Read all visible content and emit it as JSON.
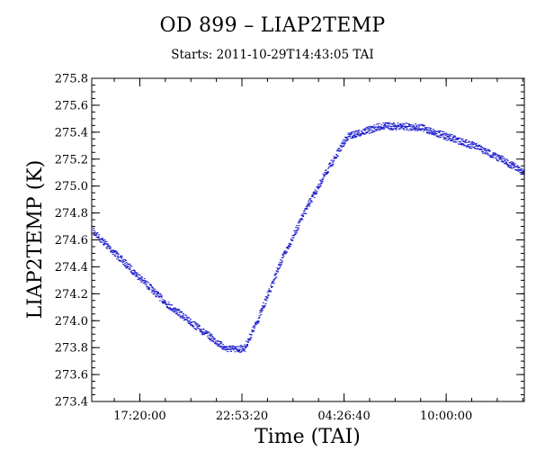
{
  "chart_data": {
    "type": "scatter",
    "title": "OD 899 – LIAP2TEMP",
    "subtitle": "Starts: 2011-10-29T14:43:05 TAI",
    "xlabel": "Time (TAI)",
    "ylabel": "LIAP2TEMP (K)",
    "ylim": [
      273.4,
      275.8
    ],
    "xlim": [
      "2011-10-29T14:43:05",
      "2011-10-30T14:15:00"
    ],
    "y_ticks": [
      "273.4",
      "273.6",
      "273.8",
      "274.0",
      "274.2",
      "274.4",
      "274.6",
      "274.8",
      "275.0",
      "275.2",
      "275.4",
      "275.6",
      "275.8"
    ],
    "x_ticks": [
      {
        "label": "17:20:00",
        "time": "2011-10-29T17:20:00"
      },
      {
        "label": "22:53:20",
        "time": "2011-10-29T22:53:20"
      },
      {
        "label": "04:26:40",
        "time": "2011-10-30T04:26:40"
      },
      {
        "label": "10:00:00",
        "time": "2011-10-30T10:00:00"
      }
    ],
    "grid": false,
    "marker_color": "#2222cc",
    "series": [
      {
        "x": [
          "2011-10-29T14:43:05",
          "2011-10-29T16:20:00",
          "2011-10-29T18:45:00",
          "2011-10-29T20:45:00",
          "2011-10-29T21:55:00",
          "2011-10-29T22:30:00",
          "2011-10-29T23:00:00",
          "2011-10-29T23:45:00",
          "2011-10-30T01:00:00",
          "2011-10-30T02:20:00",
          "2011-10-30T03:25:00",
          "2011-10-30T04:35:00",
          "2011-10-30T06:30:00",
          "2011-10-30T08:30:00",
          "2011-10-30T10:00:00",
          "2011-10-30T11:30:00",
          "2011-10-30T13:00:00",
          "2011-10-30T14:15:00"
        ],
        "values": [
          274.67,
          274.45,
          274.13,
          273.92,
          273.8,
          273.79,
          273.8,
          274.02,
          274.45,
          274.83,
          275.1,
          275.37,
          275.45,
          275.44,
          275.37,
          275.3,
          275.2,
          275.1
        ]
      }
    ]
  }
}
